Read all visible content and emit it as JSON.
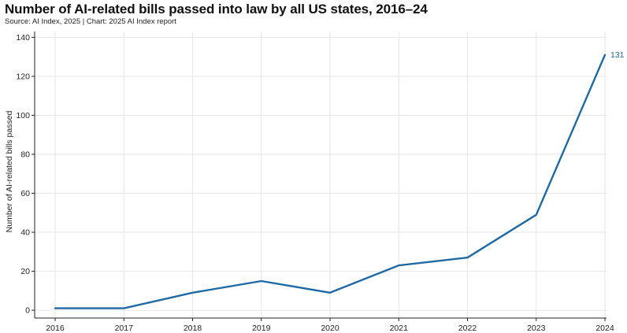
{
  "header": {
    "title": "Number of AI-related bills passed into law by all US states, 2016–24",
    "source": "Source: AI Index, 2025 | Chart: 2025 AI Index report"
  },
  "colors": {
    "line": "#1f6aa5",
    "grid": "#e6e6e6",
    "axis": "#222222",
    "text": "#222222"
  },
  "chart_data": {
    "type": "line",
    "title": "Number of AI-related bills passed into law by all US states, 2016–24",
    "xlabel": "",
    "ylabel": "Number of AI-related bills passed",
    "categories": [
      "2016",
      "2017",
      "2018",
      "2019",
      "2020",
      "2021",
      "2022",
      "2023",
      "2024"
    ],
    "series": [
      {
        "name": "AI-related bills passed",
        "values": [
          1,
          1,
          9,
          15,
          9,
          23,
          27,
          49,
          131
        ]
      }
    ],
    "yticks": [
      0,
      20,
      40,
      60,
      80,
      100,
      120,
      140
    ],
    "ylim": [
      -4,
      143
    ],
    "grid": true,
    "data_labels": [
      {
        "index": 8,
        "text": "131"
      }
    ]
  }
}
